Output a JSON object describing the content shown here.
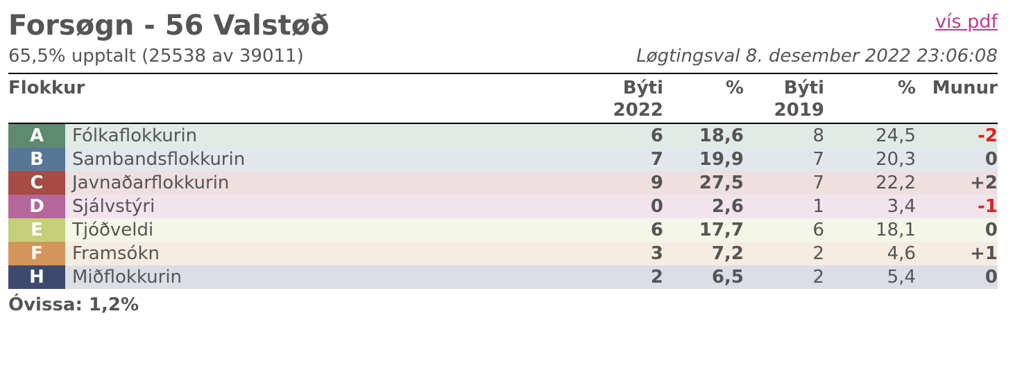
{
  "header": {
    "title": "Forsøgn - 56 Valstøð",
    "link": "vís pdf",
    "subtitle": "65,5% upptalt (25538 av 39011)",
    "date": "Løgtingsval 8. desember 2022 23:06:08"
  },
  "table": {
    "columns": [
      "Flokkur",
      [
        "Býti",
        "2022"
      ],
      "%",
      [
        "Býti",
        "2019"
      ],
      "%",
      "Munur"
    ],
    "rows": [
      {
        "letter": "A",
        "name": "Fólkaflokkurin",
        "color": "#5f8a72",
        "cells": [
          "6",
          "18,6",
          "8",
          "24,5",
          "-2"
        ]
      },
      {
        "letter": "B",
        "name": "Sambandsflokkurin",
        "color": "#587796",
        "cells": [
          "7",
          "19,9",
          "7",
          "20,3",
          "0"
        ]
      },
      {
        "letter": "C",
        "name": "Javnaðarflokkurin",
        "color": "#a64b45",
        "cells": [
          "9",
          "27,5",
          "7",
          "22,2",
          "+2"
        ]
      },
      {
        "letter": "D",
        "name": "Sjálvstýri",
        "color": "#b5679b",
        "cells": [
          "0",
          "2,6",
          "1",
          "3,4",
          "-1"
        ]
      },
      {
        "letter": "E",
        "name": "Tjóðveldi",
        "color": "#c4cf78",
        "cells": [
          "6",
          "17,7",
          "6",
          "18,1",
          "0"
        ]
      },
      {
        "letter": "F",
        "name": "Framsókn",
        "color": "#d3955a",
        "cells": [
          "3",
          "7,2",
          "2",
          "4,6",
          "+1"
        ]
      },
      {
        "letter": "H",
        "name": "Miðflokkurin",
        "color": "#3d4a6e",
        "cells": [
          "2",
          "6,5",
          "2",
          "5,4",
          "0"
        ]
      }
    ]
  },
  "footer": "Óvissa: 1,2%"
}
